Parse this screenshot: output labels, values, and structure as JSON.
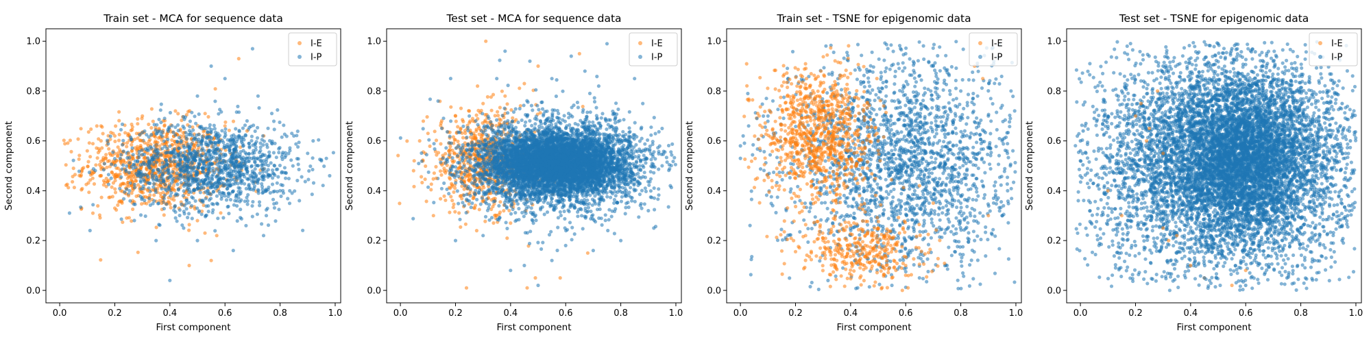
{
  "colors": {
    "orange": "#ff7f0e",
    "blue": "#1f77b4",
    "axis": "#000000",
    "legend_border": "#cccccc"
  },
  "chart_data": [
    {
      "type": "scatter",
      "title": "Train set - MCA for sequence data",
      "xlabel": "First component",
      "ylabel": "Second component",
      "xlim": [
        -0.05,
        1.02
      ],
      "ylim": [
        -0.05,
        1.05
      ],
      "xticks": [
        "0.0",
        "0.2",
        "0.4",
        "0.6",
        "0.8",
        "1.0"
      ],
      "yticks": [
        "0.0",
        "0.2",
        "0.4",
        "0.6",
        "0.8",
        "1.0"
      ],
      "legend": "top-right",
      "grid": false,
      "series": [
        {
          "name": "I-E",
          "color": "#ff7f0e",
          "alpha": 0.55,
          "points": [
            [
              0.05,
              0.49
            ],
            [
              0.1,
              0.56
            ],
            [
              0.12,
              0.45
            ],
            [
              0.15,
              0.6
            ],
            [
              0.18,
              0.52
            ],
            [
              0.2,
              0.62
            ],
            [
              0.22,
              0.42
            ],
            [
              0.25,
              0.55
            ],
            [
              0.27,
              0.48
            ],
            [
              0.3,
              0.6
            ],
            [
              0.32,
              0.4
            ],
            [
              0.35,
              0.58
            ],
            [
              0.37,
              0.35
            ],
            [
              0.38,
              0.66
            ],
            [
              0.4,
              0.5
            ],
            [
              0.42,
              0.44
            ],
            [
              0.45,
              0.62
            ],
            [
              0.47,
              0.1
            ],
            [
              0.5,
              0.28
            ],
            [
              0.52,
              0.55
            ],
            [
              0.55,
              0.12
            ],
            [
              0.57,
              0.22
            ],
            [
              0.6,
              0.66
            ],
            [
              0.65,
              0.93
            ],
            [
              0.68,
              0.64
            ],
            [
              0.3,
              0.7
            ],
            [
              0.25,
              0.38
            ],
            [
              0.2,
              0.33
            ],
            [
              0.42,
              0.72
            ],
            [
              0.15,
              0.66
            ]
          ]
        },
        {
          "name": "I-P",
          "color": "#1f77b4",
          "alpha": 0.55,
          "points": [
            [
              0.11,
              0.24
            ],
            [
              0.4,
              0.04
            ],
            [
              0.7,
              0.97
            ],
            [
              0.98,
              0.46
            ],
            [
              0.9,
              0.55
            ],
            [
              0.85,
              0.62
            ],
            [
              0.8,
              0.4
            ],
            [
              0.75,
              0.3
            ],
            [
              0.72,
              0.78
            ],
            [
              0.6,
              0.85
            ],
            [
              0.55,
              0.9
            ],
            [
              0.5,
              0.2
            ],
            [
              0.45,
              0.25
            ],
            [
              0.65,
              0.5
            ],
            [
              0.7,
              0.55
            ],
            [
              0.78,
              0.5
            ],
            [
              0.82,
              0.45
            ],
            [
              0.62,
              0.42
            ],
            [
              0.58,
              0.6
            ],
            [
              0.68,
              0.68
            ],
            [
              0.74,
              0.22
            ],
            [
              0.87,
              0.36
            ],
            [
              0.95,
              0.52
            ],
            [
              0.53,
              0.3
            ],
            [
              0.63,
              0.16
            ],
            [
              0.5,
              0.78
            ],
            [
              0.77,
              0.71
            ],
            [
              0.35,
              0.2
            ],
            [
              0.92,
              0.6
            ],
            [
              0.45,
              0.58
            ]
          ]
        }
      ],
      "density": [
        {
          "series": "I-E",
          "cx": 0.35,
          "cy": 0.5,
          "sx": 0.13,
          "sy": 0.09,
          "n": 900
        },
        {
          "series": "I-P",
          "cx": 0.55,
          "cy": 0.5,
          "sx": 0.16,
          "sy": 0.09,
          "n": 1300
        }
      ]
    },
    {
      "type": "scatter",
      "title": "Test set - MCA for sequence data",
      "xlabel": "First component",
      "ylabel": "Second component",
      "xlim": [
        -0.05,
        1.02
      ],
      "ylim": [
        -0.05,
        1.05
      ],
      "xticks": [
        "0.0",
        "0.2",
        "0.4",
        "0.6",
        "0.8",
        "1.0"
      ],
      "yticks": [
        "0.0",
        "0.2",
        "0.4",
        "0.6",
        "0.8",
        "1.0"
      ],
      "legend": "top-right",
      "grid": false,
      "series": [
        {
          "name": "I-E",
          "color": "#ff7f0e",
          "alpha": 0.55,
          "points": [
            [
              0.31,
              1.0
            ],
            [
              0.24,
              0.01
            ],
            [
              0.46,
              0.01
            ],
            [
              0.05,
              0.52
            ],
            [
              0.07,
              0.6
            ],
            [
              0.1,
              0.63
            ],
            [
              0.13,
              0.45
            ],
            [
              0.15,
              0.68
            ],
            [
              0.18,
              0.55
            ],
            [
              0.2,
              0.7
            ],
            [
              0.22,
              0.38
            ],
            [
              0.25,
              0.72
            ],
            [
              0.27,
              0.33
            ],
            [
              0.3,
              0.75
            ],
            [
              0.35,
              0.3
            ],
            [
              0.38,
              0.78
            ],
            [
              0.4,
              0.27
            ],
            [
              0.45,
              0.83
            ],
            [
              0.49,
              0.05
            ],
            [
              0.58,
              0.05
            ],
            [
              0.68,
              0.15
            ],
            [
              0.12,
              0.3
            ],
            [
              0.28,
              0.82
            ],
            [
              0.5,
              0.9
            ],
            [
              0.65,
              0.95
            ]
          ]
        },
        {
          "name": "I-P",
          "color": "#1f77b4",
          "alpha": 0.55,
          "points": [
            [
              0.38,
              0.96
            ],
            [
              0.47,
              0.92
            ],
            [
              0.62,
              0.94
            ],
            [
              0.75,
              0.99
            ],
            [
              0.85,
              0.85
            ],
            [
              0.95,
              0.5
            ],
            [
              0.98,
              0.42
            ],
            [
              0.4,
              0.08
            ],
            [
              0.45,
              0.1
            ],
            [
              0.55,
              0.12
            ],
            [
              0.6,
              0.18
            ],
            [
              0.7,
              0.16
            ],
            [
              0.8,
              0.2
            ],
            [
              0.92,
              0.25
            ],
            [
              0.88,
              0.75
            ],
            [
              0.35,
              0.85
            ],
            [
              0.3,
              0.22
            ],
            [
              0.2,
              0.2
            ],
            [
              0.25,
              0.7
            ],
            [
              0.67,
              0.88
            ],
            [
              0.72,
              0.82
            ],
            [
              0.55,
              0.85
            ],
            [
              0.5,
              0.02
            ],
            [
              0.95,
              0.65
            ],
            [
              0.9,
              0.32
            ]
          ]
        }
      ],
      "density": [
        {
          "series": "I-E",
          "cx": 0.3,
          "cy": 0.52,
          "sx": 0.1,
          "sy": 0.1,
          "n": 700
        },
        {
          "series": "I-P",
          "cx": 0.57,
          "cy": 0.51,
          "sx": 0.13,
          "sy": 0.065,
          "n": 5000
        },
        {
          "series": "I-P",
          "cx": 0.57,
          "cy": 0.5,
          "sx": 0.18,
          "sy": 0.11,
          "n": 1400
        }
      ]
    },
    {
      "type": "scatter",
      "title": "Train set - TSNE for epigenomic data",
      "xlabel": "First component",
      "ylabel": "Second component",
      "xlim": [
        -0.05,
        1.02
      ],
      "ylim": [
        -0.05,
        1.05
      ],
      "xticks": [
        "0.0",
        "0.2",
        "0.4",
        "0.6",
        "0.8",
        "1.0"
      ],
      "yticks": [
        "0.0",
        "0.2",
        "0.4",
        "0.6",
        "0.8",
        "1.0"
      ],
      "legend": "top-right",
      "grid": false,
      "series": [
        {
          "name": "I-E",
          "color": "#ff7f0e",
          "alpha": 0.55,
          "points": [
            [
              0.18,
              0.6
            ],
            [
              0.22,
              0.72
            ],
            [
              0.25,
              0.55
            ],
            [
              0.28,
              0.78
            ],
            [
              0.3,
              0.66
            ],
            [
              0.27,
              0.5
            ],
            [
              0.33,
              0.62
            ],
            [
              0.35,
              0.8
            ],
            [
              0.4,
              0.7
            ],
            [
              0.2,
              0.45
            ],
            [
              0.3,
              0.2
            ],
            [
              0.35,
              0.12
            ],
            [
              0.45,
              0.1
            ],
            [
              0.55,
              0.05
            ],
            [
              0.6,
              0.1
            ],
            [
              0.5,
              0.25
            ],
            [
              0.85,
              0.9
            ],
            [
              0.88,
              0.85
            ],
            [
              0.9,
              0.3
            ],
            [
              0.7,
              0.35
            ],
            [
              0.65,
              0.42
            ],
            [
              0.45,
              0.55
            ],
            [
              0.42,
              0.45
            ],
            [
              0.5,
              0.6
            ],
            [
              0.24,
              0.85
            ]
          ]
        },
        {
          "name": "I-P",
          "color": "#1f77b4",
          "alpha": 0.55,
          "points": [
            [
              0.0,
              0.53
            ],
            [
              0.0,
              0.58
            ],
            [
              0.01,
              0.62
            ],
            [
              0.03,
              0.66
            ],
            [
              0.06,
              0.69
            ],
            [
              0.1,
              0.7
            ],
            [
              0.6,
              0.95
            ],
            [
              0.7,
              0.9
            ],
            [
              0.8,
              0.8
            ],
            [
              0.9,
              0.7
            ],
            [
              0.95,
              0.6
            ],
            [
              0.98,
              0.5
            ],
            [
              0.97,
              0.4
            ],
            [
              0.95,
              0.3
            ],
            [
              0.85,
              0.2
            ],
            [
              0.75,
              0.1
            ],
            [
              0.65,
              0.05
            ],
            [
              0.55,
              0.02
            ],
            [
              0.45,
              0.4
            ],
            [
              0.5,
              0.5
            ],
            [
              0.6,
              0.6
            ],
            [
              0.65,
              0.7
            ],
            [
              0.7,
              0.55
            ],
            [
              0.75,
              0.45
            ],
            [
              0.8,
              0.35
            ],
            [
              0.55,
              0.3
            ],
            [
              0.6,
              0.2
            ],
            [
              0.4,
              0.3
            ],
            [
              0.35,
              0.5
            ],
            [
              0.92,
              0.92
            ],
            [
              0.98,
              0.69
            ]
          ]
        }
      ],
      "density": [
        {
          "series": "I-P",
          "cx": 0.6,
          "cy": 0.52,
          "sx": 0.22,
          "sy": 0.22,
          "n": 2200
        },
        {
          "series": "I-E",
          "cx": 0.28,
          "cy": 0.62,
          "sx": 0.1,
          "sy": 0.14,
          "n": 900
        },
        {
          "series": "I-E",
          "cx": 0.45,
          "cy": 0.15,
          "sx": 0.12,
          "sy": 0.07,
          "n": 350
        }
      ]
    },
    {
      "type": "scatter",
      "title": "Test set - TSNE for epigenomic data",
      "xlabel": "First component",
      "ylabel": "Second component",
      "xlim": [
        -0.05,
        1.02
      ],
      "ylim": [
        -0.05,
        1.05
      ],
      "xticks": [
        "0.0",
        "0.2",
        "0.4",
        "0.6",
        "0.8",
        "1.0"
      ],
      "yticks": [
        "0.0",
        "0.2",
        "0.4",
        "0.6",
        "0.8",
        "1.0"
      ],
      "legend": "top-right",
      "grid": false,
      "series": [
        {
          "name": "I-E",
          "color": "#ff7f0e",
          "alpha": 0.55,
          "points": [
            [
              0.2,
              0.7
            ],
            [
              0.22,
              0.75
            ],
            [
              0.25,
              0.65
            ],
            [
              0.28,
              0.8
            ],
            [
              0.24,
              0.6
            ],
            [
              0.3,
              0.55
            ],
            [
              0.32,
              0.2
            ],
            [
              0.35,
              0.22
            ],
            [
              0.4,
              0.1
            ],
            [
              0.45,
              0.05
            ],
            [
              0.55,
              0.02
            ],
            [
              0.6,
              0.08
            ],
            [
              0.1,
              0.4
            ],
            [
              0.15,
              0.3
            ],
            [
              0.3,
              0.25
            ]
          ]
        },
        {
          "name": "I-P",
          "color": "#1f77b4",
          "alpha": 0.6,
          "points": [
            [
              0.0,
              0.52
            ],
            [
              0.0,
              0.56
            ],
            [
              0.0,
              0.6
            ],
            [
              0.01,
              0.64
            ],
            [
              0.02,
              0.67
            ],
            [
              0.05,
              0.69
            ],
            [
              0.1,
              0.7
            ],
            [
              0.5,
              0.99
            ],
            [
              0.55,
              0.97
            ],
            [
              0.85,
              0.95
            ],
            [
              0.95,
              0.75
            ],
            [
              0.98,
              0.6
            ],
            [
              0.98,
              0.45
            ],
            [
              0.97,
              0.3
            ],
            [
              0.95,
              0.2
            ],
            [
              0.85,
              0.12
            ],
            [
              0.75,
              0.05
            ],
            [
              0.6,
              0.02
            ],
            [
              0.45,
              0.05
            ],
            [
              0.35,
              0.15
            ],
            [
              0.2,
              0.18
            ],
            [
              0.1,
              0.28
            ],
            [
              0.08,
              0.45
            ],
            [
              0.1,
              0.65
            ],
            [
              0.15,
              0.8
            ],
            [
              0.3,
              0.9
            ],
            [
              0.7,
              0.92
            ]
          ]
        }
      ],
      "density": [
        {
          "series": "I-P",
          "cx": 0.52,
          "cy": 0.5,
          "sx": 0.24,
          "sy": 0.22,
          "n": 6000
        },
        {
          "series": "I-P",
          "cx": 0.6,
          "cy": 0.55,
          "sx": 0.12,
          "sy": 0.15,
          "n": 3000
        }
      ]
    }
  ]
}
